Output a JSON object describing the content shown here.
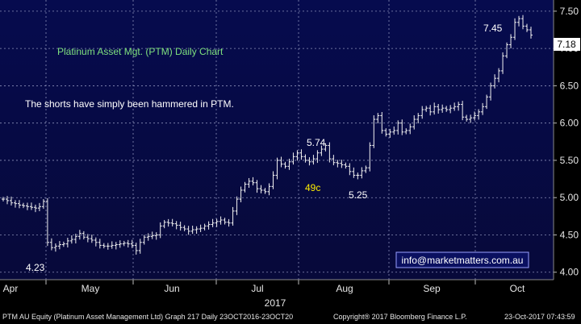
{
  "chart_data": {
    "type": "ohlc",
    "title": "Platinum Asset Mgt. (PTM) Daily Chart",
    "subtitle": "The shorts have simply been hammered in PTM.",
    "watermark": "info@marketmatters.com.au",
    "ylim": [
      3.9,
      7.65
    ],
    "y_ticks": [
      "4.00",
      "4.50",
      "5.00",
      "5.50",
      "6.00",
      "6.50",
      "7.00",
      "7.50"
    ],
    "x_month_labels": [
      "Apr",
      "May",
      "Jun",
      "Jul",
      "Aug",
      "Sep",
      "Oct"
    ],
    "x_year_label": "2017",
    "last_price": "7.18",
    "grid": true,
    "annotations": [
      {
        "text": "4.23",
        "color": "#ffffff"
      },
      {
        "text": "5.74",
        "color": "#ffffff"
      },
      {
        "text": "49c",
        "color": "#ffee00"
      },
      {
        "text": "5.25",
        "color": "#ffffff"
      },
      {
        "text": "7.45",
        "color": "#ffffff"
      }
    ],
    "closes": [
      4.98,
      4.96,
      4.93,
      4.92,
      4.9,
      4.89,
      4.88,
      4.87,
      4.86,
      4.88,
      4.95,
      4.4,
      4.33,
      4.35,
      4.37,
      4.38,
      4.42,
      4.44,
      4.48,
      4.52,
      4.47,
      4.45,
      4.43,
      4.4,
      4.36,
      4.35,
      4.35,
      4.36,
      4.37,
      4.38,
      4.39,
      4.38,
      4.36,
      4.29,
      4.4,
      4.47,
      4.48,
      4.49,
      4.5,
      4.62,
      4.67,
      4.66,
      4.65,
      4.63,
      4.6,
      4.58,
      4.55,
      4.57,
      4.58,
      4.59,
      4.62,
      4.64,
      4.66,
      4.68,
      4.7,
      4.67,
      4.66,
      4.82,
      4.98,
      5.1,
      5.18,
      5.22,
      5.2,
      5.12,
      5.1,
      5.08,
      5.15,
      5.3,
      5.5,
      5.45,
      5.42,
      5.48,
      5.55,
      5.6,
      5.55,
      5.5,
      5.48,
      5.52,
      5.6,
      5.65,
      5.7,
      5.52,
      5.47,
      5.46,
      5.44,
      5.42,
      5.35,
      5.3,
      5.3,
      5.36,
      5.4,
      5.7,
      6.05,
      6.1,
      5.9,
      5.85,
      5.88,
      5.9,
      6.0,
      5.88,
      5.9,
      5.95,
      6.05,
      6.1,
      6.18,
      6.2,
      6.15,
      6.22,
      6.18,
      6.2,
      6.18,
      6.2,
      6.22,
      6.25,
      6.08,
      6.05,
      6.07,
      6.1,
      6.15,
      6.22,
      6.35,
      6.5,
      6.6,
      6.7,
      6.9,
      7.05,
      7.15,
      7.35,
      7.4,
      7.3,
      7.25,
      7.18
    ],
    "x_range": "23OCT2016-23OCT20"
  },
  "footer": {
    "left": "PTM AU Equity (Platinum Asset Management Ltd) Graph 217  Daily 23OCT2016-23OCT20",
    "center": "Copyright® 2017 Bloomberg Finance L.P.",
    "right": "23-Oct-2017 07:43:59"
  }
}
